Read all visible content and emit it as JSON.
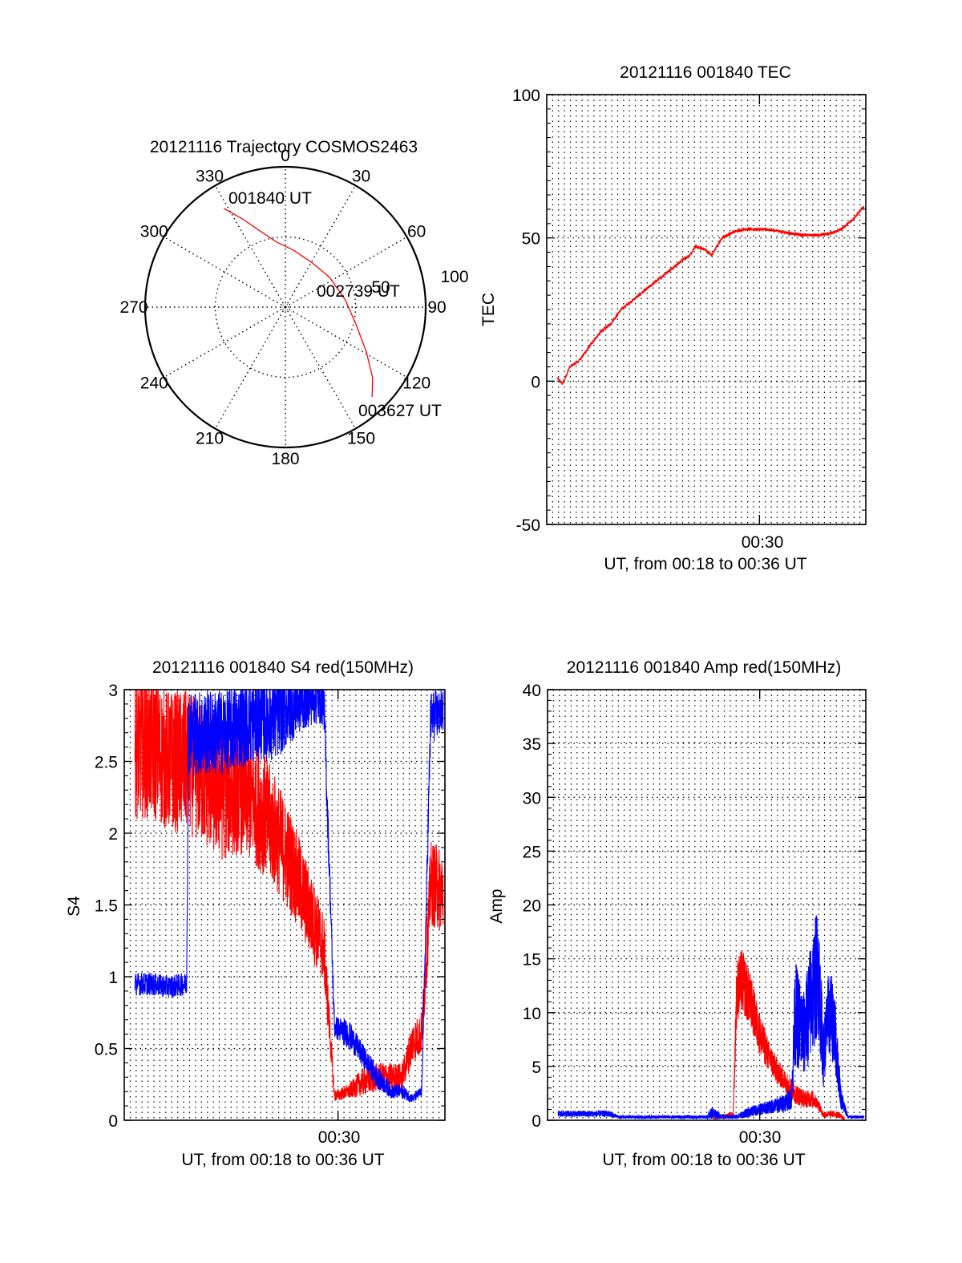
{
  "chart_data": [
    {
      "type": "polar",
      "title": "20121116 Trajectory COSMOS2463",
      "azimuth_ticks": [
        "0",
        "30",
        "60",
        "90",
        "120",
        "150",
        "180",
        "210",
        "240",
        "270",
        "300",
        "330"
      ],
      "radial_ticks": [
        "50",
        "100"
      ],
      "radial_range": [
        0,
        100
      ],
      "series": [
        {
          "name": "trajectory",
          "color": "#ff0000",
          "points": [
            {
              "az": 328,
              "r": 83
            },
            {
              "az": 334,
              "r": 70
            },
            {
              "az": 341,
              "r": 58
            },
            {
              "az": 352,
              "r": 47
            },
            {
              "az": 8,
              "r": 41
            },
            {
              "az": 30,
              "r": 37
            },
            {
              "az": 56,
              "r": 38
            },
            {
              "az": 83,
              "r": 43
            },
            {
              "az": 104,
              "r": 52
            },
            {
              "az": 119,
              "r": 66
            },
            {
              "az": 129,
              "r": 80
            },
            {
              "az": 136,
              "r": 89
            }
          ]
        }
      ],
      "annotations": [
        "001840 UT",
        "002739 UT",
        "003627 UT"
      ]
    },
    {
      "type": "line",
      "title": "20121116 001840 TEC",
      "xlabel": "UT, from 00:18 to 00:36 UT",
      "ylabel": "TEC",
      "x_tick_labels": [
        "00:30"
      ],
      "xlim_minutes": [
        18.0,
        36.0
      ],
      "ylim": [
        -50,
        100
      ],
      "y_ticks": [
        "-50",
        "0",
        "50",
        "100"
      ],
      "grid": true,
      "series": [
        {
          "name": "TEC",
          "color": "#ff0000",
          "x_minutes": [
            18.6,
            18.9,
            19.3,
            19.8,
            20.4,
            21.0,
            21.6,
            22.2,
            22.8,
            23.4,
            24.0,
            24.6,
            25.2,
            25.8,
            26.1,
            26.4,
            26.9,
            27.3,
            27.9,
            28.5,
            29.1,
            29.7,
            30.3,
            31.0,
            31.8,
            32.6,
            33.3,
            34.0,
            34.6,
            35.2,
            35.9
          ],
          "y": [
            1,
            -1,
            5,
            7,
            12,
            17,
            20,
            25,
            28,
            31,
            34,
            37,
            40,
            43,
            44,
            47,
            46,
            44,
            50,
            52,
            53,
            53,
            53,
            52.5,
            51.5,
            51,
            51,
            51.5,
            53,
            56,
            61
          ]
        }
      ]
    },
    {
      "type": "line",
      "title": "20121116 001840 S4 red(150MHz)",
      "xlabel": "UT, from 00:18 to 00:36 UT",
      "ylabel": "S4",
      "x_tick_labels": [
        "00:30"
      ],
      "xlim_minutes": [
        18.0,
        36.0
      ],
      "ylim": [
        0,
        3
      ],
      "y_ticks": [
        "0",
        "0.5",
        "1",
        "1.5",
        "2",
        "2.5",
        "3"
      ],
      "grid": true,
      "series": [
        {
          "name": "red",
          "color": "#ff0000",
          "x_minutes": [
            18.6,
            19.5,
            20.5,
            21.5,
            22.5,
            23.5,
            24.5,
            25.5,
            26.5,
            27.5,
            28.4,
            29.2,
            29.8,
            30.6,
            31.4,
            32.2,
            33.0,
            33.6,
            34.2,
            34.7,
            35.2,
            35.9
          ],
          "y": [
            2.6,
            2.6,
            2.5,
            2.5,
            2.4,
            2.3,
            2.3,
            2.2,
            2.0,
            1.75,
            1.45,
            1.2,
            0.17,
            0.2,
            0.27,
            0.3,
            0.3,
            0.3,
            0.55,
            0.6,
            1.65,
            1.6
          ],
          "noise": [
            0.5,
            0.5,
            0.5,
            0.5,
            0.5,
            0.5,
            0.45,
            0.45,
            0.4,
            0.35,
            0.3,
            0.25,
            0.04,
            0.05,
            0.1,
            0.1,
            0.1,
            0.1,
            0.15,
            0.15,
            0.3,
            0.3
          ]
        },
        {
          "name": "blue",
          "color": "#0000ff",
          "x_minutes": [
            18.6,
            19.5,
            20.5,
            21.5,
            21.6,
            22.5,
            23.5,
            24.5,
            25.5,
            26.5,
            27.5,
            28.4,
            29.2,
            29.8,
            30.6,
            31.4,
            32.2,
            33.0,
            33.6,
            34.2,
            34.7,
            35.2,
            35.9
          ],
          "y": [
            0.95,
            0.95,
            0.93,
            0.95,
            2.7,
            2.7,
            2.7,
            2.75,
            2.8,
            2.8,
            2.9,
            2.95,
            2.95,
            0.65,
            0.6,
            0.45,
            0.3,
            0.2,
            0.2,
            0.15,
            0.2,
            2.8,
            2.85
          ],
          "noise": [
            0.08,
            0.08,
            0.08,
            0.08,
            0.3,
            0.3,
            0.3,
            0.3,
            0.3,
            0.3,
            0.25,
            0.2,
            0.2,
            0.08,
            0.1,
            0.08,
            0.08,
            0.05,
            0.05,
            0.03,
            0.04,
            0.2,
            0.15
          ]
        }
      ]
    },
    {
      "type": "line",
      "title": "20121116 001840 Amp red(150MHz)",
      "xlabel": "UT, from 00:18 to 00:36 UT",
      "ylabel": "Amp",
      "x_tick_labels": [
        "00:30"
      ],
      "xlim_minutes": [
        18.0,
        36.0
      ],
      "ylim": [
        0,
        40
      ],
      "y_ticks": [
        "0",
        "5",
        "10",
        "15",
        "20",
        "25",
        "30",
        "35",
        "40"
      ],
      "grid": true,
      "series": [
        {
          "name": "red",
          "color": "#ff0000",
          "x_minutes": [
            27.4,
            28.5,
            28.7,
            29.0,
            29.5,
            30.0,
            30.5,
            31.0,
            31.5,
            32.0,
            32.5,
            33.0,
            33.3,
            33.6,
            34.0,
            34.5,
            34.8
          ],
          "y": [
            0.2,
            0.5,
            12,
            13,
            11,
            8,
            6,
            4.5,
            3.5,
            2.5,
            2,
            2,
            1.5,
            0.5,
            0.6,
            0.5,
            0.1
          ],
          "noise": [
            0.1,
            0.3,
            3,
            3,
            2.5,
            2,
            1.5,
            1.2,
            1,
            1,
            0.8,
            0.8,
            0.5,
            0.3,
            0.3,
            0.3,
            0.1
          ]
        },
        {
          "name": "blue",
          "color": "#0000ff",
          "x_minutes": [
            18.6,
            19.5,
            20.5,
            21.5,
            22.0,
            23.0,
            24.0,
            25.0,
            26.0,
            27.0,
            27.3,
            28.0,
            28.6,
            29.5,
            30.5,
            31.2,
            31.8,
            32.0,
            32.5,
            33.0,
            33.3,
            33.6,
            33.9,
            34.2,
            34.6,
            35.0,
            35.5,
            35.9
          ],
          "y": [
            0.6,
            0.6,
            0.6,
            0.6,
            0.3,
            0.3,
            0.3,
            0.3,
            0.3,
            0.3,
            0.7,
            0.3,
            0.3,
            0.8,
            1.2,
            1.5,
            2,
            10,
            8,
            12,
            14,
            6,
            10,
            9,
            2,
            0.3,
            0.3,
            0.3
          ],
          "noise": [
            0.3,
            0.3,
            0.3,
            0.3,
            0.15,
            0.15,
            0.15,
            0.15,
            0.15,
            0.15,
            0.6,
            0.15,
            0.2,
            0.5,
            0.6,
            0.8,
            1,
            5,
            4,
            6,
            6,
            3,
            4,
            4,
            1,
            0.15,
            0.15,
            0.15
          ]
        }
      ]
    }
  ]
}
